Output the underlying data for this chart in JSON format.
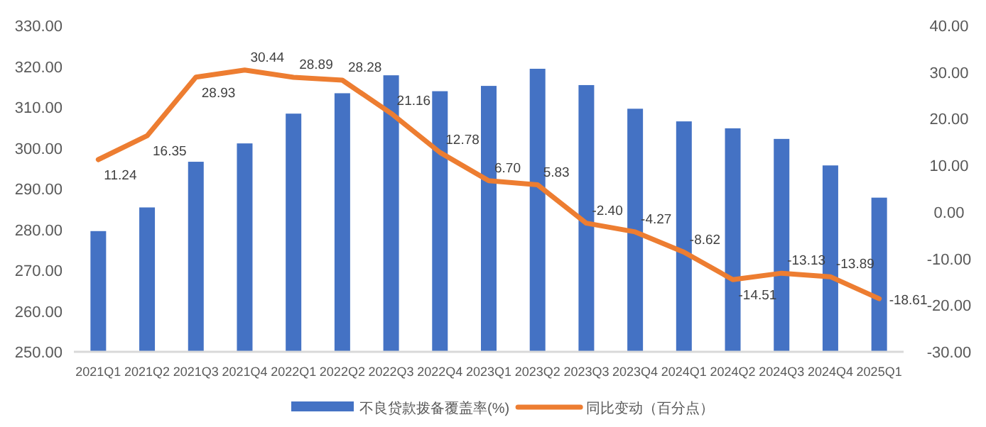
{
  "chart_data": {
    "type": "bar",
    "categories": [
      "2021Q1",
      "2021Q2",
      "2021Q3",
      "2021Q4",
      "2022Q1",
      "2022Q2",
      "2022Q3",
      "2022Q4",
      "2023Q1",
      "2023Q2",
      "2023Q3",
      "2023Q4",
      "2024Q1",
      "2024Q2",
      "2024Q3",
      "2024Q4",
      "2025Q1"
    ],
    "series": [
      {
        "name": "不良贷款拨备覆盖率(%)",
        "color": "#4472c4",
        "values": [
          279.6,
          285.4,
          296.6,
          301.1,
          308.4,
          313.4,
          317.8,
          313.9,
          315.2,
          319.4,
          315.4,
          309.6,
          306.5,
          304.8,
          302.2,
          295.7,
          287.8
        ]
      },
      {
        "name": "同比变动（百分点）",
        "type": "line",
        "axis": "y2",
        "color": "#ed7d31",
        "values": [
          11.24,
          16.35,
          28.93,
          30.44,
          28.89,
          28.28,
          21.16,
          12.78,
          6.7,
          5.83,
          -2.4,
          -4.27,
          -8.62,
          -14.51,
          -13.13,
          -13.89,
          -18.61
        ],
        "value_labels": [
          "11.24",
          "16.35",
          "28.93",
          "30.44",
          "28.89",
          "28.28",
          "21.16",
          "12.78",
          "6.70",
          "5.83",
          "-2.40",
          "-4.27",
          "-8.62",
          "-14.51",
          "-13.13",
          "-13.89",
          "-18.61"
        ]
      }
    ],
    "ylim": [
      250,
      330
    ],
    "yticks": [
      {
        "value": 250,
        "label": "250.00"
      },
      {
        "value": 260,
        "label": "260.00"
      },
      {
        "value": 270,
        "label": "270.00"
      },
      {
        "value": 280,
        "label": "280.00"
      },
      {
        "value": 290,
        "label": "290.00"
      },
      {
        "value": 300,
        "label": "300.00"
      },
      {
        "value": 310,
        "label": "310.00"
      },
      {
        "value": 320,
        "label": "320.00"
      },
      {
        "value": 330,
        "label": "330.00"
      }
    ],
    "y2lim": [
      -30,
      40
    ],
    "y2ticks": [
      {
        "value": -30,
        "label": "-30.00"
      },
      {
        "value": -20,
        "label": "-20.00"
      },
      {
        "value": -10,
        "label": "-10.00"
      },
      {
        "value": 0,
        "label": "0.00"
      },
      {
        "value": 10,
        "label": "10.00"
      },
      {
        "value": 20,
        "label": "20.00"
      },
      {
        "value": 30,
        "label": "30.00"
      },
      {
        "value": 40,
        "label": "40.00"
      }
    ],
    "legend": "bottom",
    "grid": false
  }
}
